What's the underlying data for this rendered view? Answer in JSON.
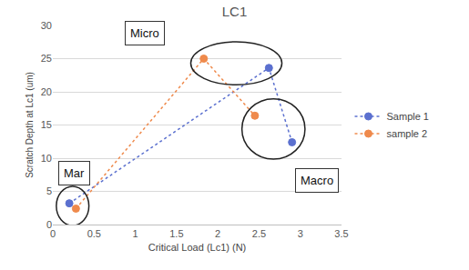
{
  "chart_data": {
    "type": "scatter",
    "title": "LC1",
    "x_label": "Critical Load (Lc1) (N)",
    "y_label": "Scratch Depth at Lc1 (um)",
    "series": [
      {
        "name": "Sample 1",
        "color": "#5b70cf",
        "marker": "circle",
        "line_style": "dot",
        "x": [
          0.2,
          2.62,
          2.9
        ],
        "values": [
          3.2,
          23.6,
          12.4
        ]
      },
      {
        "name": "sample 2",
        "color": "#ef8a4c",
        "marker": "circle",
        "line_style": "dot",
        "x": [
          0.28,
          1.83,
          2.45
        ],
        "values": [
          2.4,
          25,
          16.4
        ]
      }
    ],
    "annotations": [
      "Mar",
      "Micro",
      "Macro"
    ],
    "xlim": [
      0,
      3.5
    ],
    "xticks": [
      0,
      0.5,
      1,
      1.5,
      2,
      2.5,
      3,
      3.5
    ],
    "ylim": [
      0,
      30
    ],
    "yticks": [
      0,
      5,
      10,
      15,
      20,
      25,
      30
    ],
    "grid": true,
    "legend": "right"
  }
}
